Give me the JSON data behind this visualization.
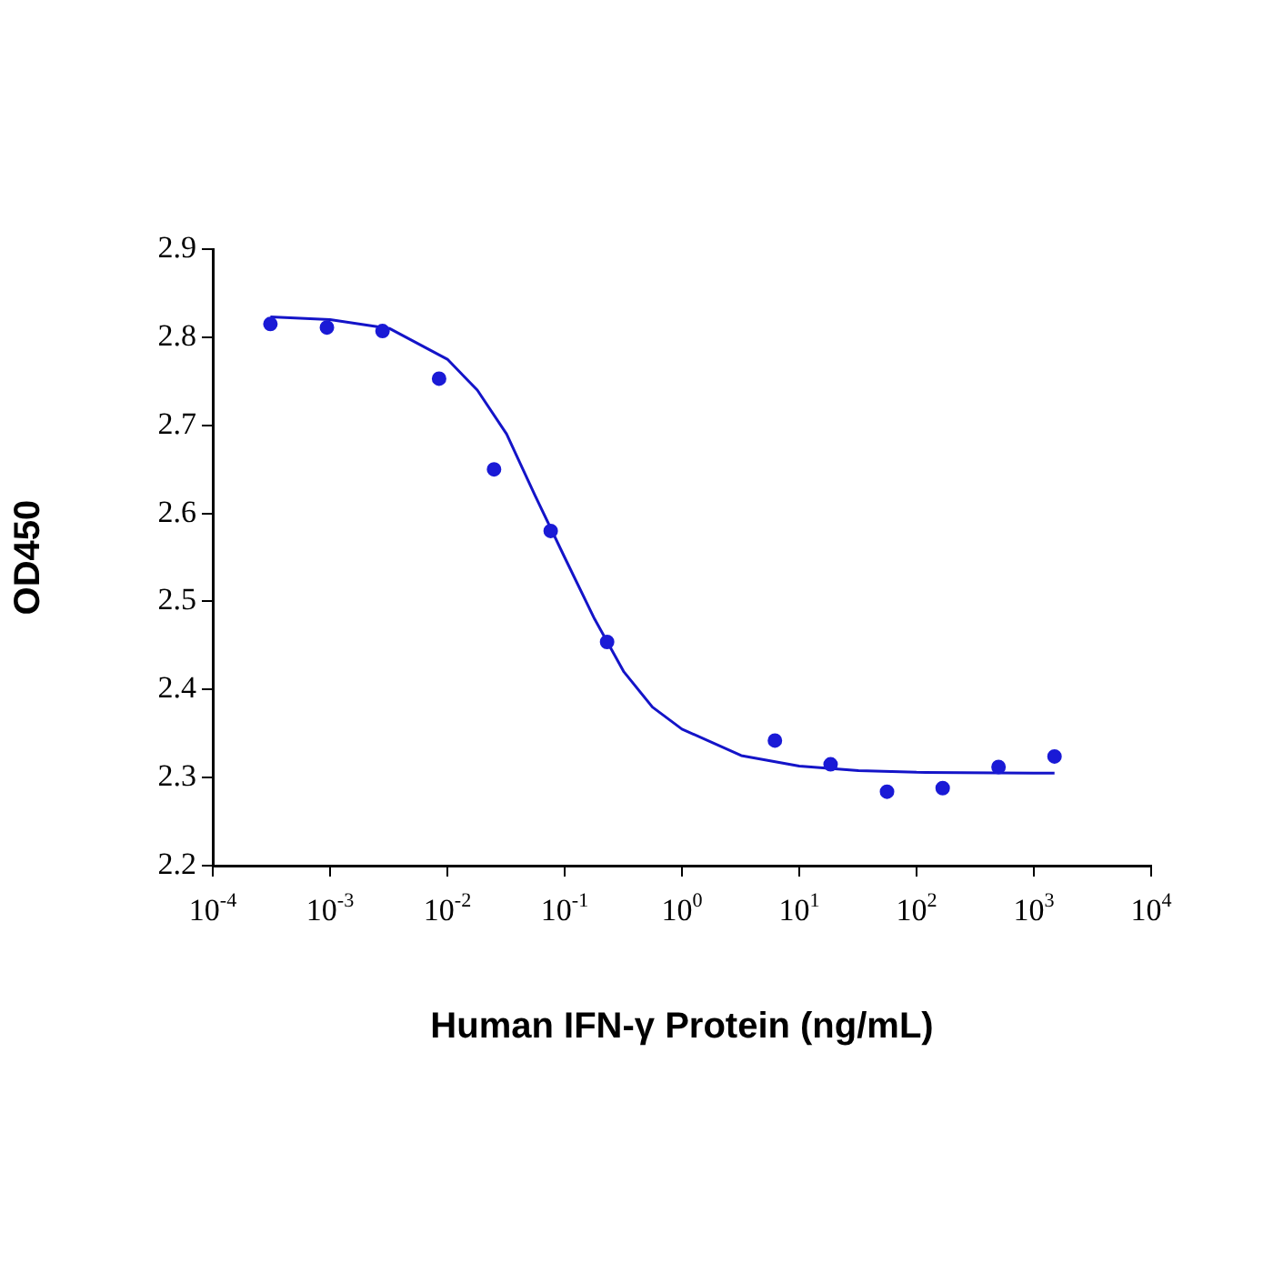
{
  "chart_data": {
    "type": "scatter",
    "xlabel": "Human IFN-γ Protein (ng/mL)",
    "ylabel": "OD450",
    "log": "x",
    "grid": false,
    "legend": false,
    "marker": "circle",
    "xlim": [
      0.0001,
      10000
    ],
    "xticks": [
      {
        "value": 0.0001,
        "label": "10$^{-4}$"
      },
      {
        "value": 0.001,
        "label": "10$^{-3}$"
      },
      {
        "value": 0.01,
        "label": "10$^{-2}$"
      },
      {
        "value": 0.1,
        "label": "10$^{-1}$"
      },
      {
        "value": 1,
        "label": "10$^{0}$"
      },
      {
        "value": 10,
        "label": "10$^{1}$"
      },
      {
        "value": 100,
        "label": "10$^{2}$"
      },
      {
        "value": 1000,
        "label": "10$^{3}$"
      },
      {
        "value": 10000,
        "label": "10$^{4}$"
      }
    ],
    "ylim": [
      2.2,
      2.9
    ],
    "yticks": [
      2.2,
      2.3,
      2.4,
      2.5,
      2.6,
      2.7,
      2.8,
      2.9
    ],
    "series": [
      {
        "color": "#1a1ad6",
        "x": [
          0.00031,
          0.00094,
          0.0028,
          0.0085,
          0.025,
          0.076,
          0.23,
          6.2,
          18.5,
          56,
          167,
          500,
          1500
        ],
        "values": [
          2.815,
          2.811,
          2.807,
          2.753,
          2.65,
          2.58,
          2.454,
          2.342,
          2.315,
          2.284,
          2.288,
          2.312,
          2.324
        ]
      },
      {
        "type": "line",
        "color": "#1414c8",
        "marker": "none",
        "x": [
          0.00031,
          0.001,
          0.0032,
          0.01,
          0.018,
          0.032,
          0.056,
          0.1,
          0.18,
          0.32,
          0.56,
          1,
          3.2,
          10,
          32,
          100,
          1000,
          1500
        ],
        "values": [
          2.823,
          2.82,
          2.81,
          2.775,
          2.74,
          2.69,
          2.62,
          2.55,
          2.48,
          2.42,
          2.38,
          2.355,
          2.325,
          2.313,
          2.308,
          2.306,
          2.305,
          2.305
        ]
      }
    ]
  }
}
